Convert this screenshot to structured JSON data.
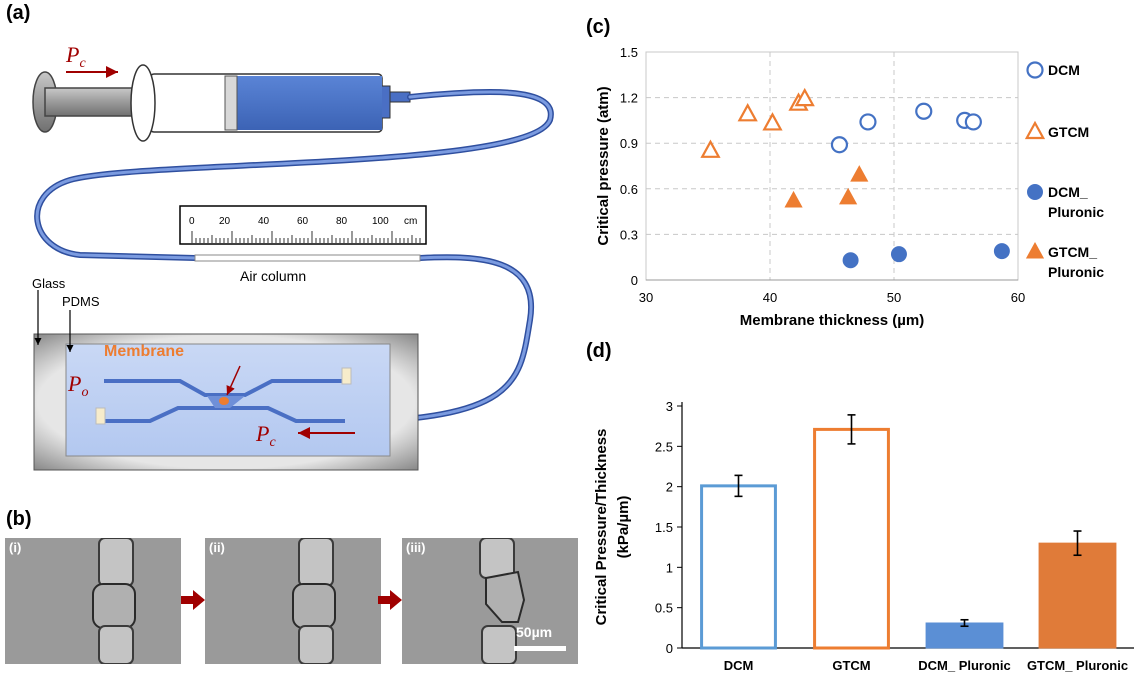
{
  "panel_labels": {
    "a": "(a)",
    "b": "(b)",
    "c": "(c)",
    "d": "(d)"
  },
  "schematic": {
    "pc_label_main": "P",
    "pc_sub": "c",
    "po_label_main": "P",
    "po_sub": "o",
    "ruler_unit": "cm",
    "ruler_ticks": [
      "0",
      "20",
      "40",
      "60",
      "80",
      "100"
    ],
    "air_column": "Air column",
    "glass": "Glass",
    "pdms": "PDMS",
    "membrane": "Membrane",
    "colors": {
      "syringe_blue": "#4472C4",
      "tubing": "#5B7FD0",
      "membrane": "#ED7D31",
      "arrow": "#A00000"
    }
  },
  "micrographs": {
    "labels": [
      "(i)",
      "(ii)",
      "(iii)"
    ],
    "scale_bar": "50µm"
  },
  "chart_data": [
    {
      "type": "scatter",
      "panel": "(c)",
      "xlabel": "Membrane thickness (µm)",
      "ylabel": "Critical pressure (atm)",
      "xlim": [
        30,
        60
      ],
      "ylim": [
        0,
        1.5
      ],
      "xticks": [
        "30",
        "40",
        "50",
        "60"
      ],
      "yticks": [
        "0",
        "0.3",
        "0.6",
        "0.9",
        "1.2",
        "1.5"
      ],
      "grid": true,
      "legend_placement": "right",
      "series": [
        {
          "name": "DCM",
          "marker": "circle-open",
          "color": "#4472C4",
          "points": [
            [
              45.6,
              0.89
            ],
            [
              47.9,
              1.04
            ],
            [
              52.4,
              1.11
            ],
            [
              55.7,
              1.05
            ],
            [
              56.4,
              1.04
            ]
          ]
        },
        {
          "name": "GTCM",
          "marker": "triangle-open",
          "color": "#ED7D31",
          "points": [
            [
              35.2,
              0.85
            ],
            [
              38.2,
              1.09
            ],
            [
              40.2,
              1.03
            ],
            [
              42.3,
              1.16
            ],
            [
              42.8,
              1.19
            ]
          ]
        },
        {
          "name": "DCM_\nPluronic",
          "marker": "circle-filled",
          "color": "#4472C4",
          "points": [
            [
              46.5,
              0.13
            ],
            [
              50.4,
              0.17
            ],
            [
              58.7,
              0.19
            ]
          ]
        },
        {
          "name": "GTCM_\nPluronic",
          "marker": "triangle-filled",
          "color": "#ED7D31",
          "points": [
            [
              41.9,
              0.52
            ],
            [
              46.3,
              0.54
            ],
            [
              47.2,
              0.69
            ]
          ]
        }
      ]
    },
    {
      "type": "bar",
      "panel": "(d)",
      "ylabel_line1": "Critical Pressure/Thickness",
      "ylabel_line2": "(kPa/µm)",
      "ylim": [
        0,
        3
      ],
      "yticks": [
        "0",
        "0.5",
        "1",
        "1.5",
        "2",
        "2.5",
        "3"
      ],
      "categories": [
        "DCM",
        "GTCM",
        "DCM_ Pluronic",
        "GTCM_ Pluronic"
      ],
      "values": [
        2.01,
        2.71,
        0.31,
        1.3
      ],
      "errors": [
        0.13,
        0.18,
        0.04,
        0.15
      ],
      "styles": [
        "open",
        "open",
        "filled",
        "filled"
      ],
      "colors": [
        "#5B9BD5",
        "#ED7D31",
        "#5B8FD5",
        "#E07B39"
      ]
    }
  ]
}
